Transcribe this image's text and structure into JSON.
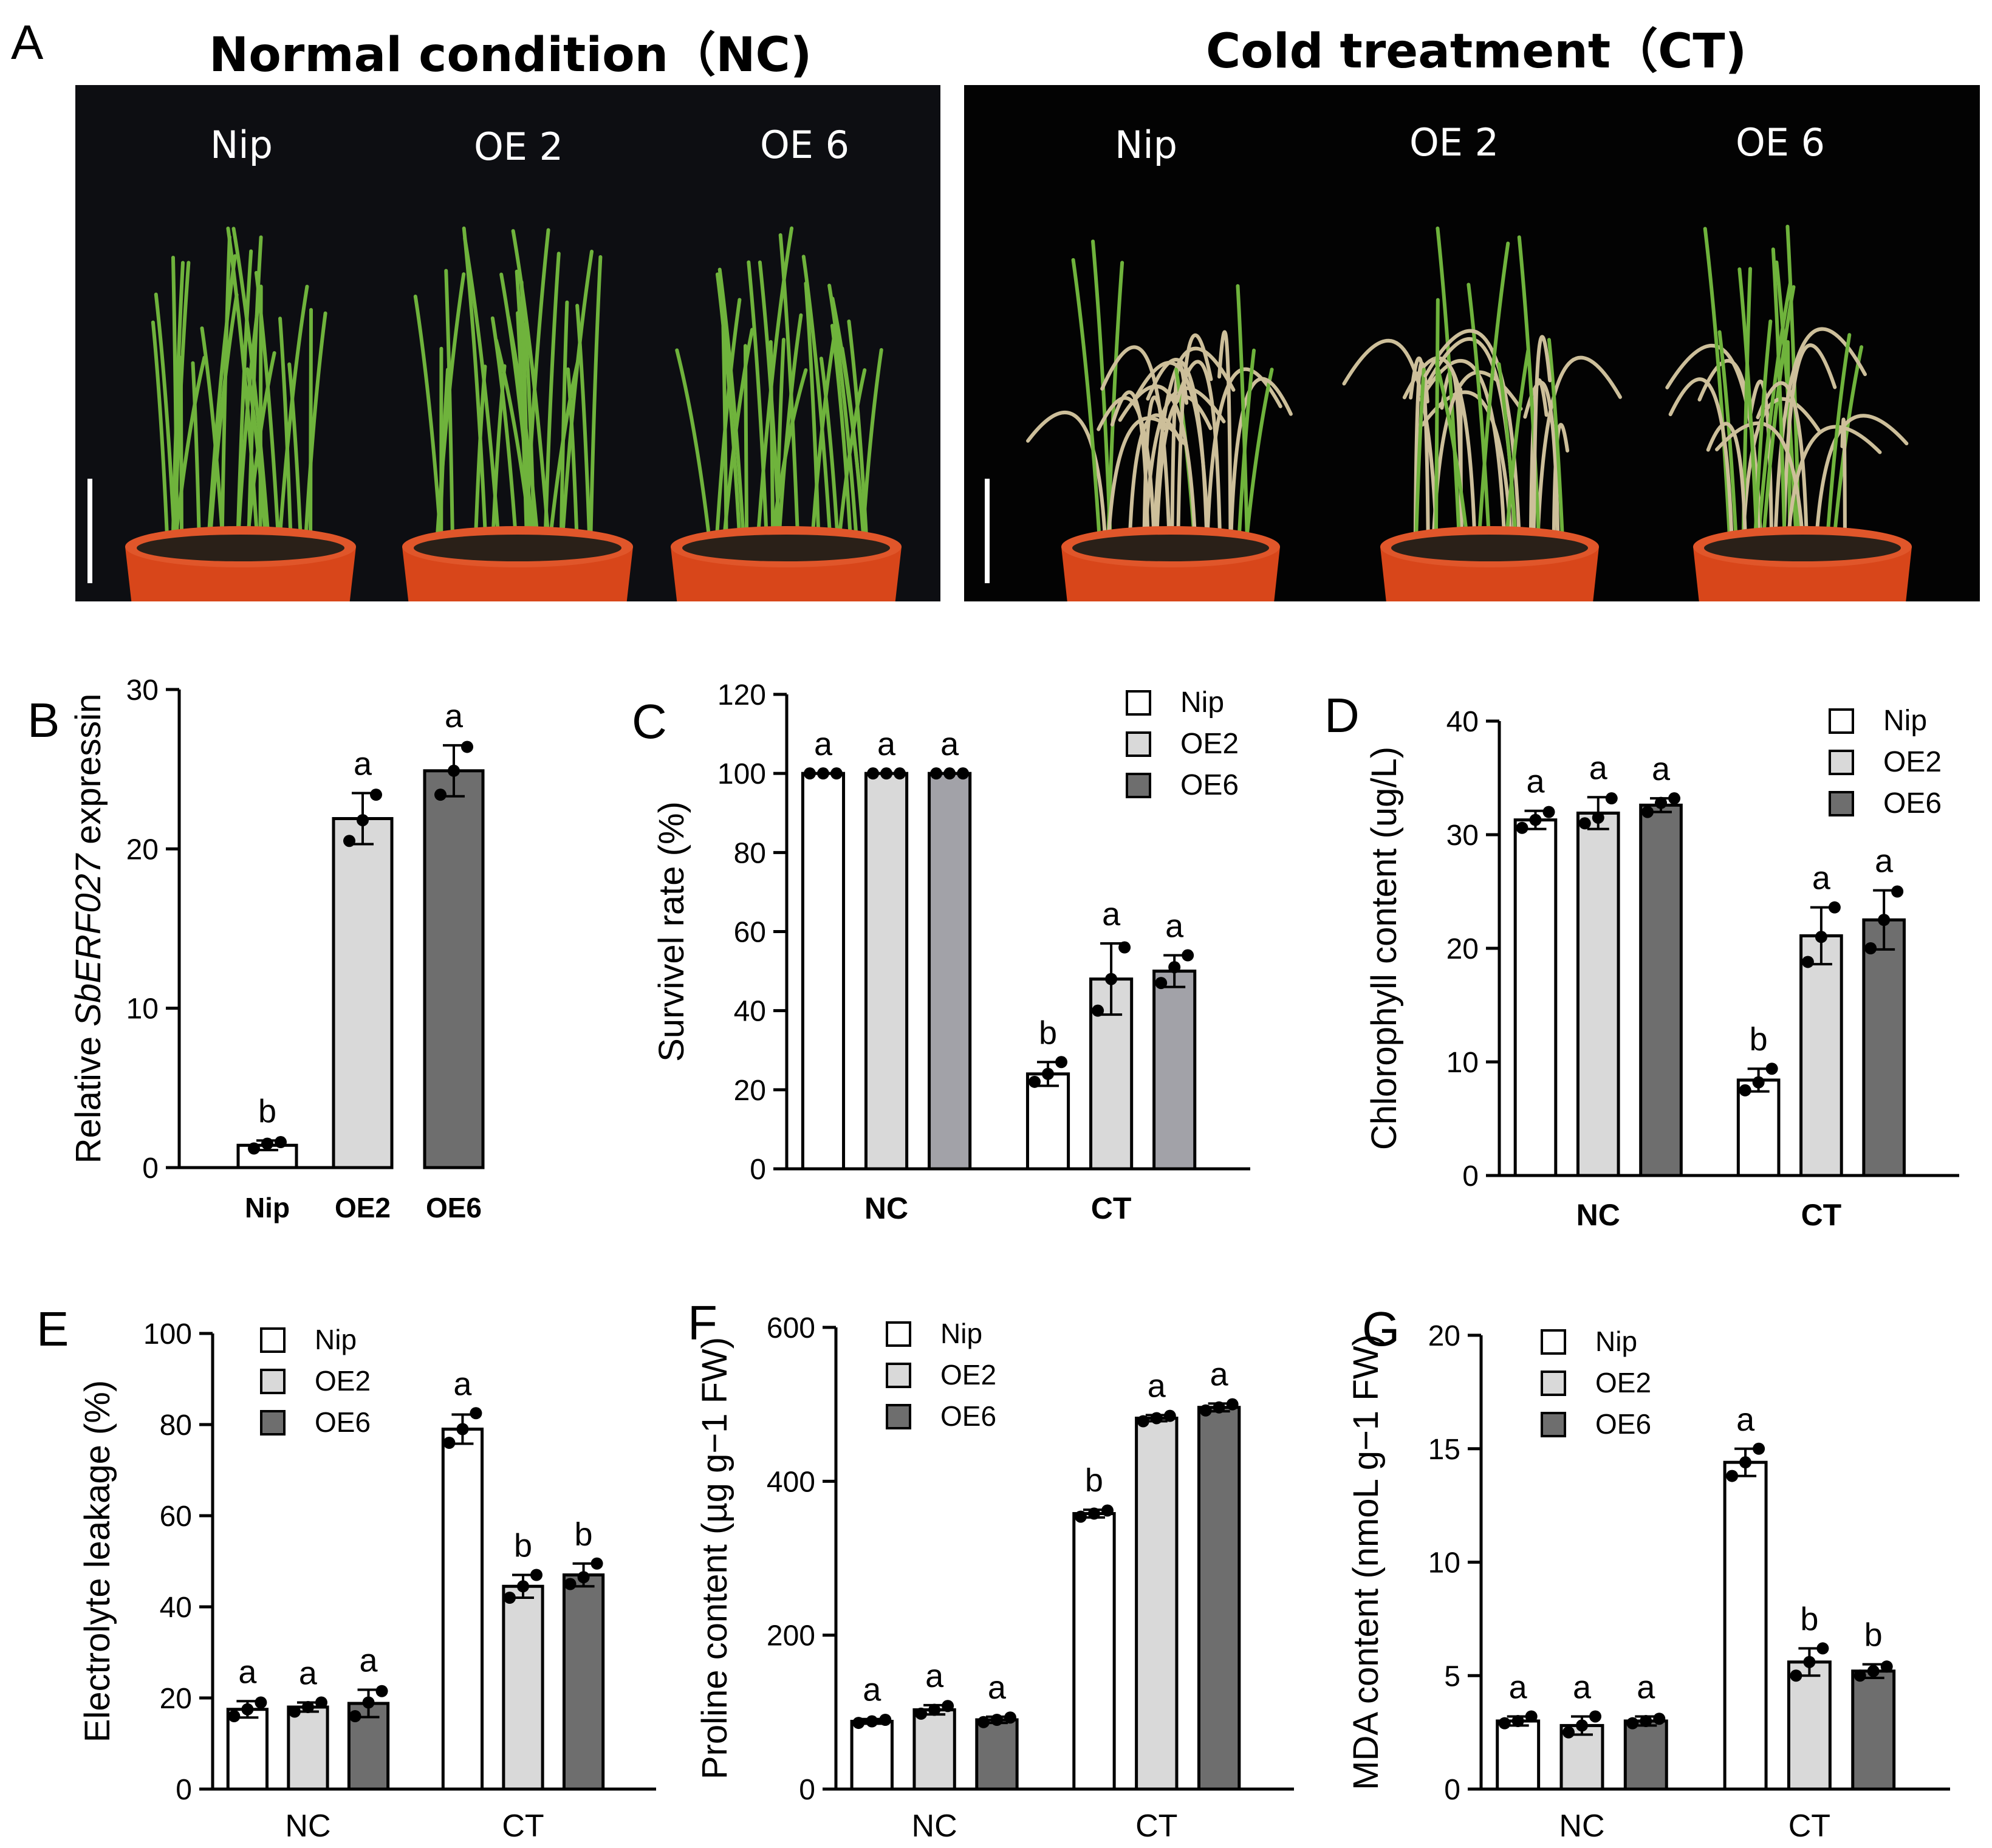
{
  "panel_a": {
    "letter": "A",
    "left_title": "Normal condition（NC)",
    "right_title": "Cold treatment（CT)",
    "left_genotypes": [
      "Nip",
      "OE 2",
      "OE 6"
    ],
    "right_genotypes": [
      "Nip",
      "OE 2",
      "OE 6"
    ]
  },
  "colors": {
    "nip": "#ffffff",
    "oe2": "#d9d9d9",
    "oe6": "#6e6e6e",
    "oe6_c": "#a2a2a8",
    "axis": "#000000",
    "photo_bg_left": "#0d0e12",
    "photo_bg_right": "#030303",
    "pot": "#d8461a",
    "leaf_green": "#6fb33c",
    "leaf_dry": "#cdbf9a"
  },
  "chart_data": [
    {
      "id": "B",
      "letter": "B",
      "type": "bar",
      "ylabel_parts": [
        "Relative ",
        "SbERF027",
        " expressin"
      ],
      "ylim": [
        0,
        30
      ],
      "yticks": [
        0,
        10,
        20,
        30
      ],
      "categories": [
        "Nip",
        "OE2",
        "OE6"
      ],
      "values": [
        1.4,
        21.9,
        24.9
      ],
      "errors": [
        0.3,
        1.6,
        1.6
      ],
      "points": [
        [
          1.2,
          1.5,
          1.6
        ],
        [
          20.5,
          21.8,
          23.4
        ],
        [
          23.4,
          24.9,
          26.4
        ]
      ],
      "letters": [
        "b",
        "a",
        "a"
      ]
    },
    {
      "id": "C",
      "letter": "C",
      "type": "bar",
      "ylabel": "Survivel rate (%)",
      "ylim": [
        0,
        120
      ],
      "yticks": [
        0,
        20,
        40,
        60,
        80,
        100,
        120
      ],
      "groups": [
        "NC",
        "CT"
      ],
      "legend": [
        "Nip",
        "OE2",
        "OE6"
      ],
      "legend_position": "top-right",
      "series": [
        {
          "name": "Nip",
          "values": [
            100,
            24
          ],
          "errors": [
            0,
            3
          ],
          "points": [
            [
              100,
              100,
              100
            ],
            [
              22,
              24,
              27
            ]
          ],
          "letters": [
            "a",
            "b"
          ]
        },
        {
          "name": "OE2",
          "values": [
            100,
            48
          ],
          "errors": [
            0,
            9
          ],
          "points": [
            [
              100,
              100,
              100
            ],
            [
              40,
              48,
              56
            ]
          ],
          "letters": [
            "a",
            "a"
          ]
        },
        {
          "name": "OE6",
          "values": [
            100,
            50
          ],
          "errors": [
            0,
            4
          ],
          "points": [
            [
              100,
              100,
              100
            ],
            [
              47,
              51,
              54
            ]
          ],
          "letters": [
            "a",
            "a"
          ]
        }
      ]
    },
    {
      "id": "D",
      "letter": "D",
      "type": "bar",
      "ylabel": "Chlorophyll content (ug/L)",
      "ylim": [
        0,
        40
      ],
      "yticks": [
        0,
        10,
        20,
        30,
        40
      ],
      "groups": [
        "NC",
        "CT"
      ],
      "legend": [
        "Nip",
        "OE2",
        "OE6"
      ],
      "legend_position": "top-right",
      "series": [
        {
          "name": "Nip",
          "values": [
            31.3,
            8.4
          ],
          "errors": [
            0.8,
            1.0
          ],
          "points": [
            [
              30.6,
              31.3,
              32.0
            ],
            [
              7.5,
              8.2,
              9.4
            ]
          ],
          "letters": [
            "a",
            "b"
          ]
        },
        {
          "name": "OE2",
          "values": [
            31.9,
            21.1
          ],
          "errors": [
            1.4,
            2.5
          ],
          "points": [
            [
              31.0,
              31.5,
              33.2
            ],
            [
              18.8,
              21.0,
              23.6
            ]
          ],
          "letters": [
            "a",
            "a"
          ]
        },
        {
          "name": "OE6",
          "values": [
            32.6,
            22.5
          ],
          "errors": [
            0.6,
            2.6
          ],
          "points": [
            [
              32.0,
              32.8,
              33.2
            ],
            [
              20.0,
              22.5,
              25.0
            ]
          ],
          "letters": [
            "a",
            "a"
          ]
        }
      ]
    },
    {
      "id": "E",
      "letter": "E",
      "type": "bar",
      "ylabel": "Electrolyte leakage (%)",
      "ylim": [
        0,
        100
      ],
      "yticks": [
        0,
        20,
        40,
        60,
        80,
        100
      ],
      "groups": [
        "NC",
        "CT"
      ],
      "legend": [
        "Nip",
        "OE2",
        "OE6"
      ],
      "legend_position": "top-left",
      "series": [
        {
          "name": "Nip",
          "values": [
            17.5,
            79.0
          ],
          "errors": [
            1.8,
            3.2
          ],
          "points": [
            [
              16.0,
              17.5,
              19.0
            ],
            [
              76.0,
              79.0,
              82.5
            ]
          ],
          "letters": [
            "a",
            "a"
          ]
        },
        {
          "name": "OE2",
          "values": [
            18.0,
            44.5
          ],
          "errors": [
            1.0,
            2.5
          ],
          "points": [
            [
              17.0,
              18.0,
              19.0
            ],
            [
              42.0,
              44.5,
              47.0
            ]
          ],
          "letters": [
            "a",
            "b"
          ]
        },
        {
          "name": "OE6",
          "values": [
            18.8,
            47.0
          ],
          "errors": [
            3.0,
            2.5
          ],
          "points": [
            [
              16.0,
              19.0,
              21.5
            ],
            [
              45.0,
              46.5,
              49.5
            ]
          ],
          "letters": [
            "a",
            "b"
          ]
        }
      ]
    },
    {
      "id": "F",
      "letter": "F",
      "type": "bar",
      "ylabel": "Proline content (µg g−1 FW)",
      "ylim": [
        0,
        600
      ],
      "yticks": [
        0,
        200,
        400,
        600
      ],
      "groups": [
        "NC",
        "CT"
      ],
      "legend": [
        "Nip",
        "OE2",
        "OE6"
      ],
      "legend_position": "top-left",
      "series": [
        {
          "name": "Nip",
          "values": [
            88,
            358
          ],
          "errors": [
            3,
            5
          ],
          "points": [
            [
              86,
              88,
              90
            ],
            [
              354,
              358,
              362
            ]
          ],
          "letters": [
            "a",
            "b"
          ]
        },
        {
          "name": "OE2",
          "values": [
            103,
            482
          ],
          "errors": [
            6,
            4
          ],
          "points": [
            [
              98,
              103,
              108
            ],
            [
              478,
              482,
              485
            ]
          ],
          "letters": [
            "a",
            "a"
          ]
        },
        {
          "name": "OE6",
          "values": [
            90,
            496
          ],
          "errors": [
            4,
            5
          ],
          "points": [
            [
              87,
              90,
              93
            ],
            [
              492,
              496,
              500
            ]
          ],
          "letters": [
            "a",
            "a"
          ]
        }
      ]
    },
    {
      "id": "G",
      "letter": "G",
      "type": "bar",
      "ylabel": "MDA content (nmoL g−1 FW)",
      "ylim": [
        0,
        20
      ],
      "yticks": [
        0,
        5,
        10,
        15,
        20
      ],
      "groups": [
        "NC",
        "CT"
      ],
      "legend": [
        "Nip",
        "OE2",
        "OE6"
      ],
      "legend_position": "top-left",
      "series": [
        {
          "name": "Nip",
          "values": [
            3.0,
            14.4
          ],
          "errors": [
            0.2,
            0.6
          ],
          "points": [
            [
              2.9,
              3.0,
              3.2
            ],
            [
              13.8,
              14.4,
              15.0
            ]
          ],
          "letters": [
            "a",
            "a"
          ]
        },
        {
          "name": "OE2",
          "values": [
            2.8,
            5.6
          ],
          "errors": [
            0.4,
            0.6
          ],
          "points": [
            [
              2.5,
              2.8,
              3.2
            ],
            [
              5.0,
              5.6,
              6.2
            ]
          ],
          "letters": [
            "a",
            "b"
          ]
        },
        {
          "name": "OE6",
          "values": [
            3.0,
            5.2
          ],
          "errors": [
            0.2,
            0.3
          ],
          "points": [
            [
              2.9,
              3.0,
              3.1
            ],
            [
              5.0,
              5.2,
              5.4
            ]
          ],
          "letters": [
            "a",
            "b"
          ]
        }
      ]
    }
  ]
}
